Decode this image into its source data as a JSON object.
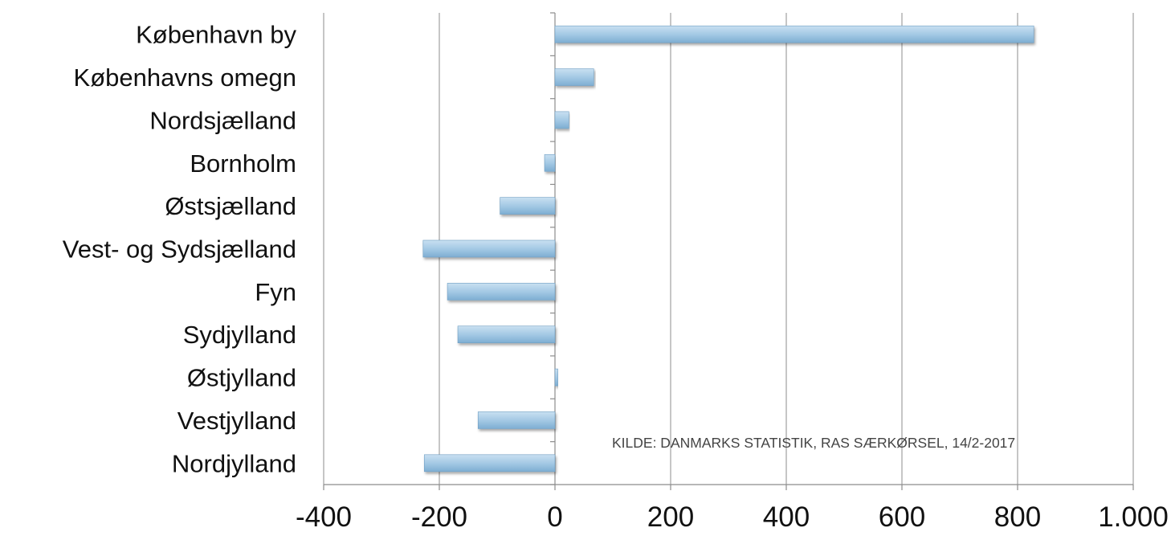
{
  "chart_data": {
    "type": "bar",
    "orientation": "horizontal",
    "title": "",
    "xlabel": "",
    "ylabel": "",
    "categories": [
      "København by",
      "Københavns omegn",
      "Nordsjælland",
      "Bornholm",
      "Østsjælland",
      "Vest- og Sydsjælland",
      "Fyn",
      "Sydjylland",
      "Østjylland",
      "Vestjylland",
      "Nordjylland"
    ],
    "values": [
      828,
      67,
      24,
      -18,
      -95,
      -228,
      -186,
      -168,
      5,
      -133,
      -226
    ],
    "xlim": [
      -400,
      1000
    ],
    "xticks": [
      -400,
      -200,
      0,
      200,
      400,
      600,
      800,
      1000
    ],
    "xtick_labels": [
      "-400",
      "-200",
      "0",
      "200",
      "400",
      "600",
      "800",
      "1.000"
    ],
    "grid": "vertical",
    "legend": "none",
    "bar_color": "#9cc3e0",
    "annotation": "KILDE: DANMARKS STATISTIK, RAS SÆRKØRSEL, 14/2-2017"
  }
}
